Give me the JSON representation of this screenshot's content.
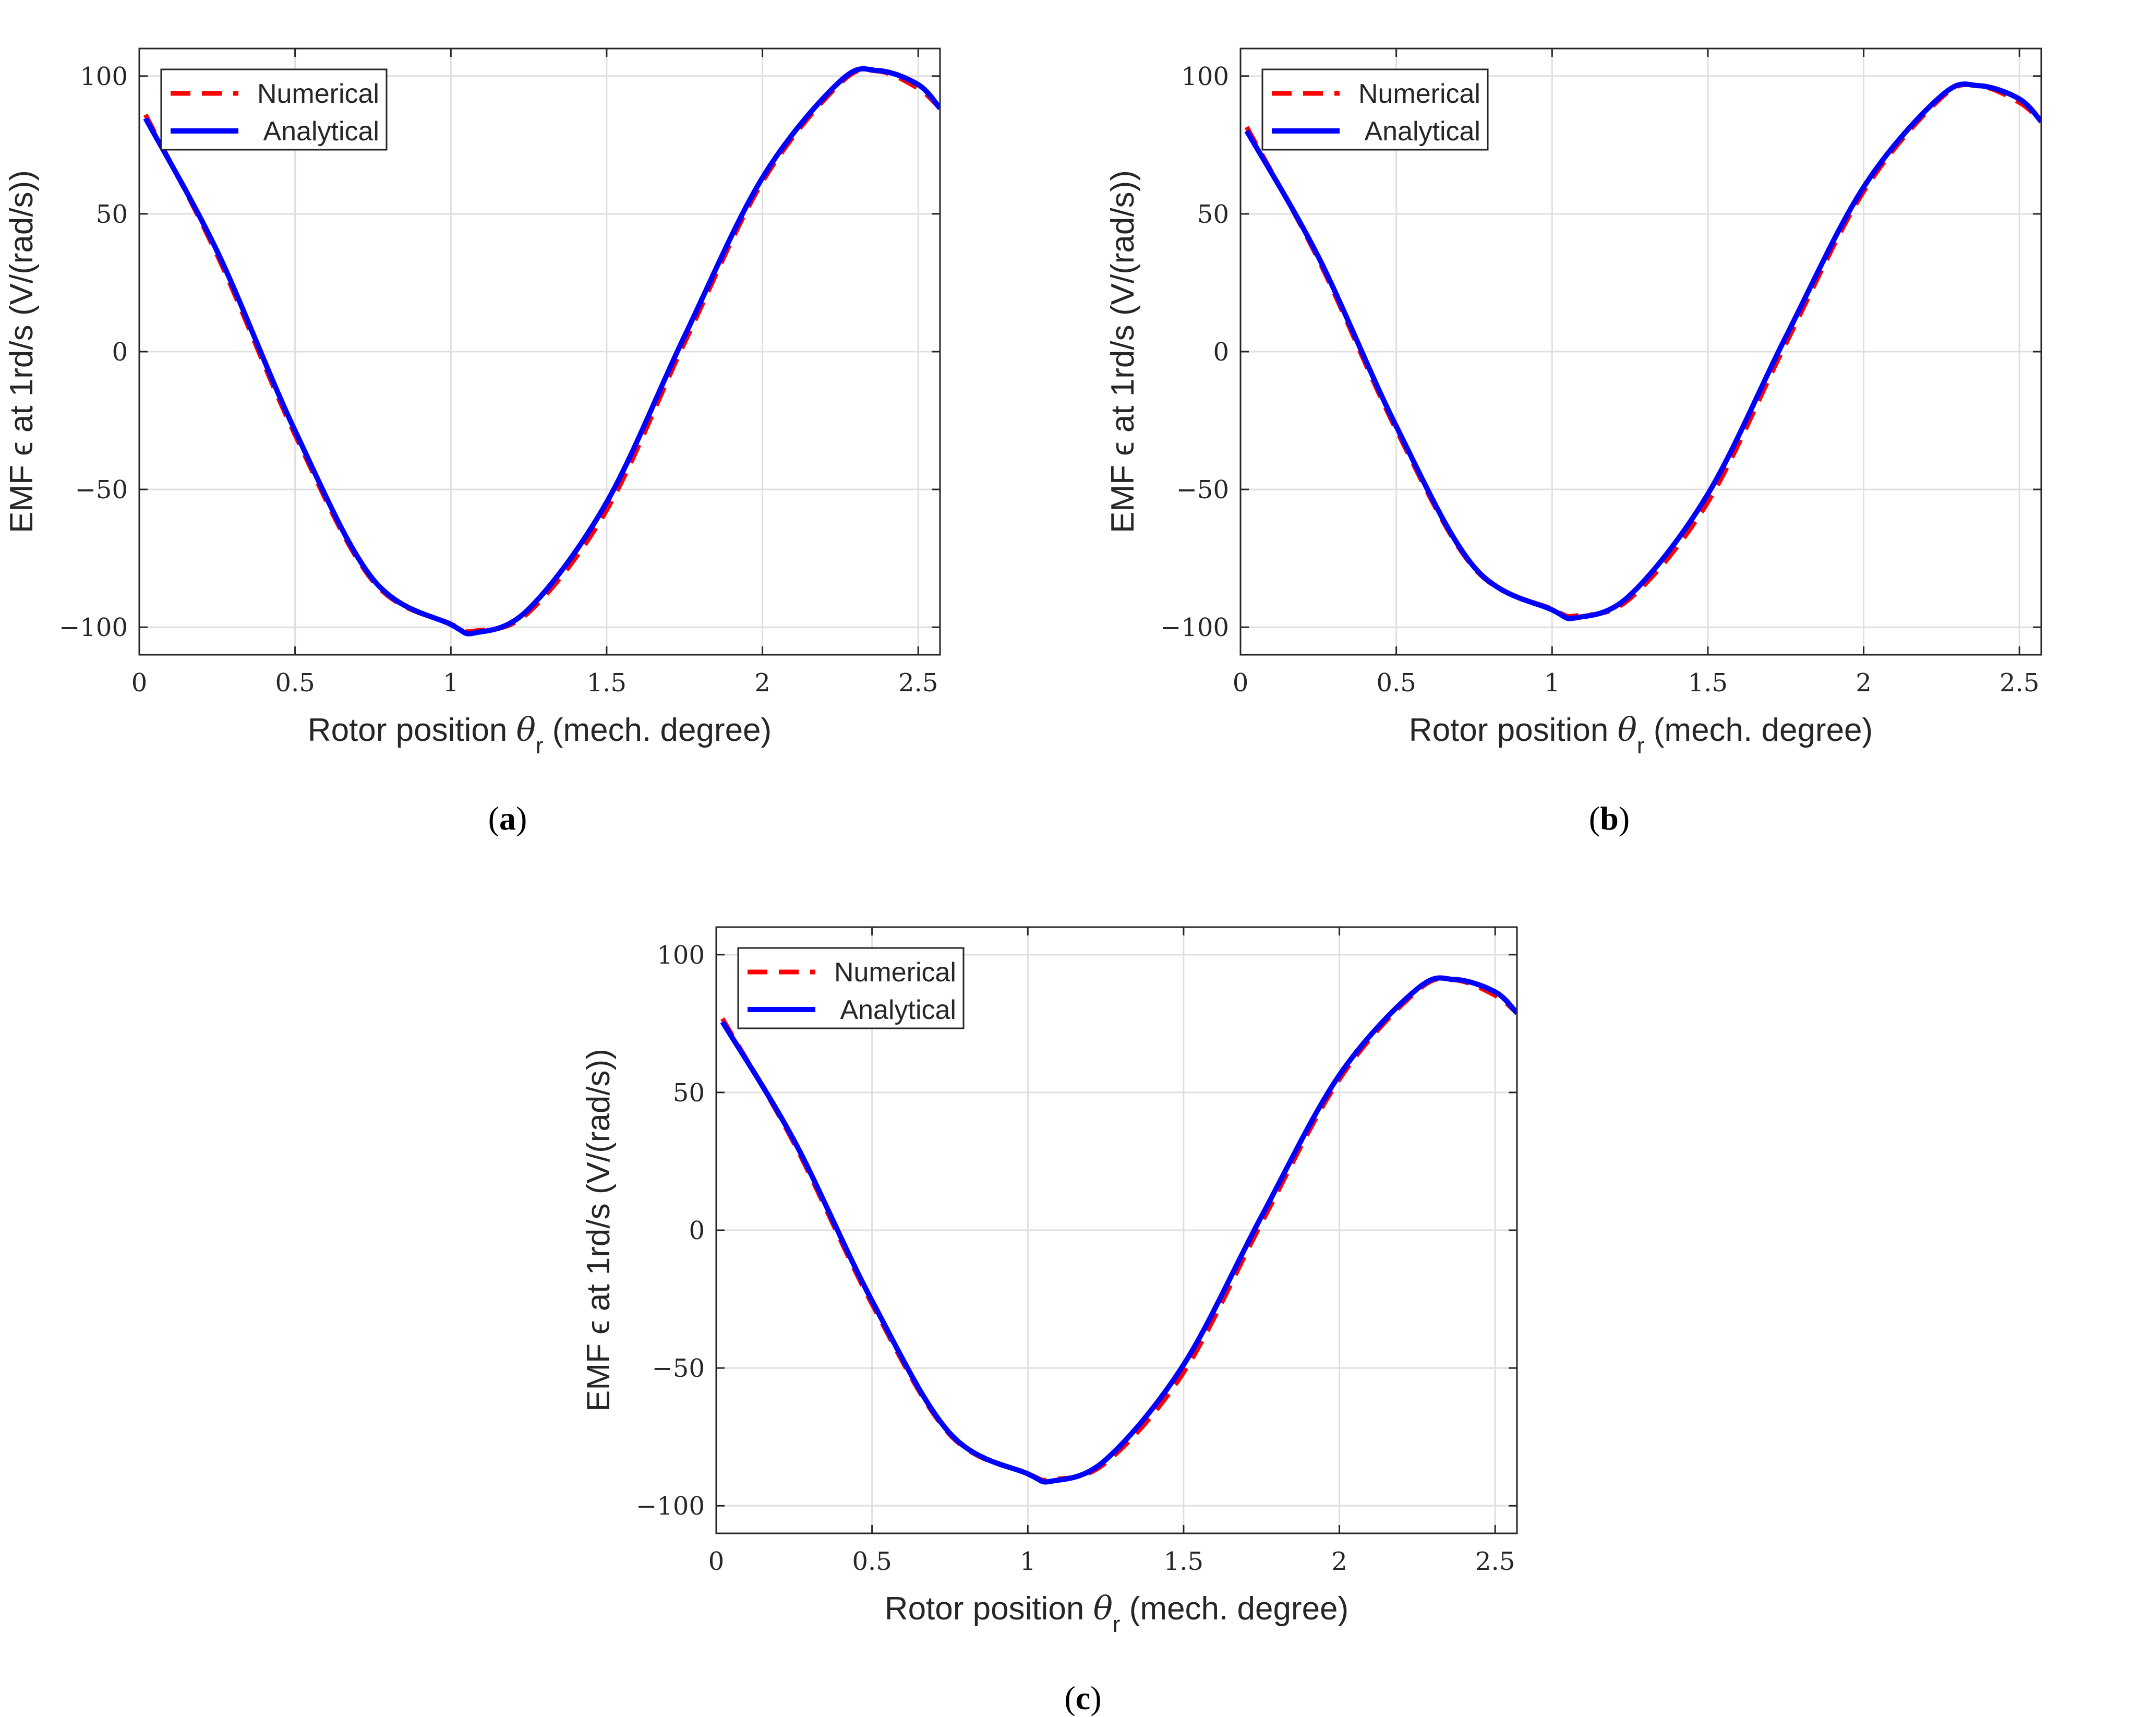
{
  "figure": {
    "captions": [
      {
        "open": "(",
        "letter": "a",
        "close": ")"
      },
      {
        "open": "(",
        "letter": "b",
        "close": ")"
      },
      {
        "open": "(",
        "letter": "c",
        "close": ")"
      }
    ]
  },
  "chart_data": [
    {
      "type": "line",
      "xlabel": "Rotor position θ_r (mech. degree)",
      "xlabel_parts": {
        "pre": "Rotor position ",
        "symbol": "θ",
        "sub": "r",
        "post": " (mech. degree)"
      },
      "ylabel": "EMF ϵ at 1rd/s (V/(rad/s))",
      "xlim": [
        0,
        2.57
      ],
      "ylim": [
        -110,
        110
      ],
      "xticks": [
        0,
        0.5,
        1,
        1.5,
        2,
        2.5
      ],
      "xtick_labels": [
        "0",
        "0.5",
        "1",
        "1.5",
        "2",
        "2.5"
      ],
      "yticks": [
        -100,
        -50,
        0,
        50,
        100
      ],
      "ytick_labels": [
        "−100",
        "−50",
        "0",
        "50",
        "100"
      ],
      "grid": true,
      "legend": "top-left",
      "amplitude": 102,
      "series": [
        {
          "name": "Numerical",
          "style": "dashed",
          "color": "#ff0000",
          "x": [
            0.02,
            0.25,
            0.5,
            0.75,
            1.0,
            1.08,
            1.25,
            1.5,
            1.75,
            2.0,
            2.25,
            2.37,
            2.5,
            2.57
          ],
          "values": [
            86.0,
            35.0,
            -30.2,
            -83.3,
            -98.8,
            -101.3,
            -94.6,
            -57.5,
            3.2,
            61.6,
            97.4,
            101.8,
            95.5,
            88.3
          ]
        },
        {
          "name": "Analytical",
          "style": "solid",
          "color": "#0000ff",
          "x": [
            0.02,
            0.25,
            0.5,
            0.75,
            1.0,
            1.08,
            1.25,
            1.5,
            1.75,
            2.0,
            2.25,
            2.37,
            2.5,
            2.57
          ],
          "values": [
            84.7,
            36.4,
            -28.7,
            -82.6,
            -99.0,
            -102.0,
            -93.4,
            -54.7,
            5.6,
            63.1,
            98.2,
            102.0,
            96.9,
            88.3
          ]
        }
      ]
    },
    {
      "type": "line",
      "xlabel": "Rotor position θ_r (mech. degree)",
      "xlabel_parts": {
        "pre": "Rotor position ",
        "symbol": "θ",
        "sub": "r",
        "post": " (mech. degree)"
      },
      "ylabel": "EMF ϵ at 1rd/s (V/(rad/s))",
      "xlim": [
        0,
        2.57
      ],
      "ylim": [
        -110,
        110
      ],
      "xticks": [
        0,
        0.5,
        1,
        1.5,
        2,
        2.5
      ],
      "xtick_labels": [
        "0",
        "0.5",
        "1",
        "1.5",
        "2",
        "2.5"
      ],
      "yticks": [
        -100,
        -50,
        0,
        50,
        100
      ],
      "ytick_labels": [
        "−100",
        "−50",
        "0",
        "50",
        "100"
      ],
      "grid": true,
      "legend": "top-left",
      "amplitude": 96.5,
      "series": [
        {
          "name": "Numerical",
          "style": "dashed",
          "color": "#ff0000",
          "x": [
            0.02,
            0.25,
            0.5,
            0.75,
            1.0,
            1.08,
            1.25,
            1.5,
            1.75,
            2.0,
            2.25,
            2.37,
            2.5,
            2.57
          ],
          "values": [
            81.5,
            33.4,
            -28.4,
            -78.6,
            -93.4,
            -95.8,
            -89.6,
            -54.6,
            2.8,
            58.1,
            92.2,
            96.4,
            90.4,
            83.5
          ]
        },
        {
          "name": "Analytical",
          "style": "solid",
          "color": "#0000ff",
          "x": [
            0.02,
            0.25,
            0.5,
            0.75,
            1.0,
            1.08,
            1.25,
            1.5,
            1.75,
            2.0,
            2.25,
            2.37,
            2.5,
            2.57
          ],
          "values": [
            80.1,
            34.4,
            -27.1,
            -78.2,
            -93.7,
            -96.5,
            -88.4,
            -51.7,
            5.3,
            59.7,
            92.9,
            96.5,
            91.7,
            83.5
          ]
        }
      ]
    },
    {
      "type": "line",
      "xlabel": "Rotor position θ_r (mech. degree)",
      "xlabel_parts": {
        "pre": "Rotor position ",
        "symbol": "θ",
        "sub": "r",
        "post": " (mech. degree)"
      },
      "ylabel": "EMF ϵ at 1rd/s (V/(rad/s))",
      "xlim": [
        0,
        2.57
      ],
      "ylim": [
        -110,
        110
      ],
      "xticks": [
        0,
        0.5,
        1,
        1.5,
        2,
        2.5
      ],
      "xtick_labels": [
        "0",
        "0.5",
        "1",
        "1.5",
        "2",
        "2.5"
      ],
      "yticks": [
        -100,
        -50,
        0,
        50,
        100
      ],
      "ytick_labels": [
        "−100",
        "−50",
        "0",
        "50",
        "100"
      ],
      "grid": true,
      "legend": "top-left",
      "amplitude": 91,
      "series": [
        {
          "name": "Numerical",
          "style": "dashed",
          "color": "#ff0000",
          "x": [
            0.02,
            0.25,
            0.5,
            0.75,
            1.0,
            1.08,
            1.25,
            1.5,
            1.75,
            2.0,
            2.25,
            2.37,
            2.5,
            2.57
          ],
          "values": [
            76.8,
            31.5,
            -26.8,
            -74.2,
            -88.3,
            -90.4,
            -84.4,
            -51.6,
            2.6,
            54.8,
            86.9,
            90.8,
            85.2,
            78.8
          ]
        },
        {
          "name": "Analytical",
          "style": "solid",
          "color": "#0000ff",
          "x": [
            0.02,
            0.25,
            0.5,
            0.75,
            1.0,
            1.08,
            1.25,
            1.5,
            1.75,
            2.0,
            2.25,
            2.37,
            2.5,
            2.57
          ],
          "values": [
            75.6,
            32.5,
            -25.6,
            -73.7,
            -88.4,
            -91.0,
            -83.3,
            -48.8,
            5.0,
            56.3,
            87.6,
            91.0,
            86.5,
            78.8
          ]
        }
      ]
    }
  ]
}
